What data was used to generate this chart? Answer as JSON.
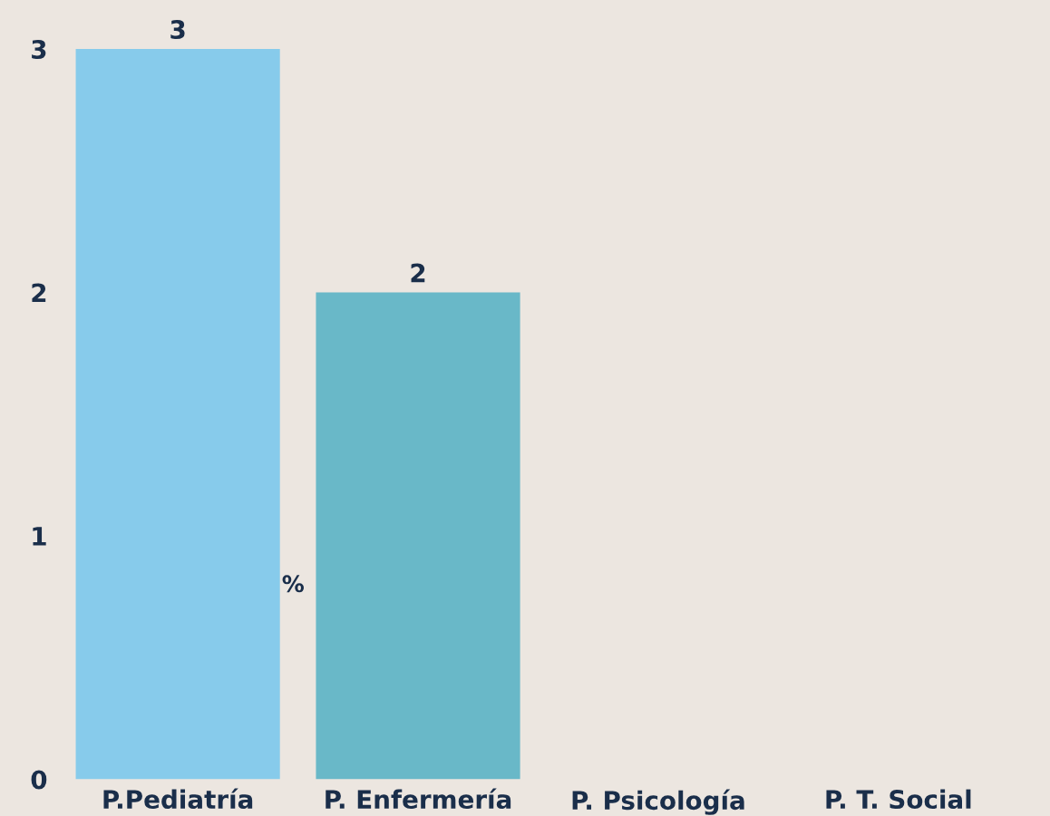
{
  "chart_data": {
    "type": "bar",
    "categories": [
      "P.Pediatría",
      "P. Enfermería",
      "P. Psicología",
      "P. T. Social"
    ],
    "values": [
      3,
      2,
      0,
      0
    ],
    "colors": [
      "#87cbeb",
      "#69b8c8",
      "#69b8c8",
      "#69b8c8"
    ],
    "value_labels": [
      "3",
      "2",
      null,
      null
    ],
    "ylabel": "%",
    "ylim": [
      0,
      3
    ],
    "yticks": [
      0,
      1,
      2,
      3
    ],
    "grid": false
  }
}
